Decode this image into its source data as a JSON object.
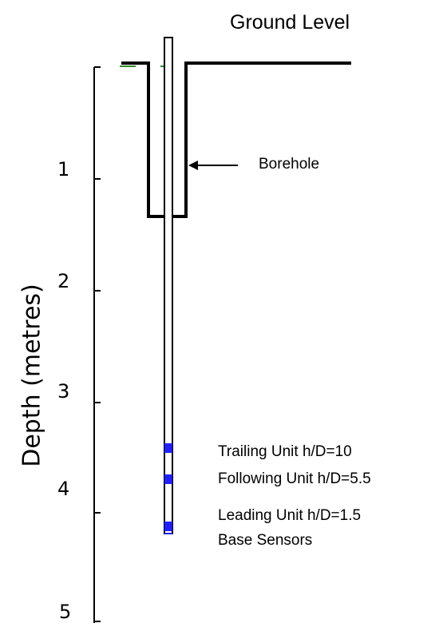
{
  "title": "Ground Level",
  "borehole_label": "Borehole",
  "axis": {
    "title": "Depth (metres)",
    "ticks": [
      "1",
      "2",
      "3",
      "4",
      "5"
    ]
  },
  "sensors": [
    {
      "label": "Trailing Unit h/D=10"
    },
    {
      "label": "Following Unit h/D=5.5"
    },
    {
      "label": "Leading Unit h/D=1.5"
    },
    {
      "label": "Base Sensors"
    }
  ],
  "colors": {
    "line": "#000000",
    "sensor": "#1f1fff",
    "ground_accent": "#2e8b2e"
  }
}
